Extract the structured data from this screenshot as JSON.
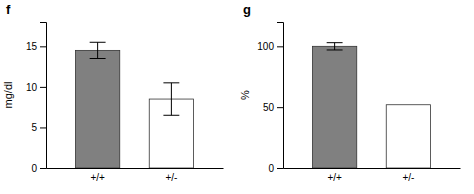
{
  "chart_data": [
    {
      "type": "bar",
      "title": "f",
      "categories": [
        "+/+",
        "+/-"
      ],
      "values": [
        14.5,
        8.5
      ],
      "errors": [
        1.0,
        2.0
      ],
      "colors": [
        "#808080",
        "#ffffff"
      ],
      "ylabel": "mg/dl",
      "ylim": [
        0,
        18
      ],
      "yticks": [
        0,
        5,
        10,
        15
      ]
    },
    {
      "type": "bar",
      "title": "g",
      "categories": [
        "+/+",
        "+/-"
      ],
      "values": [
        100,
        52
      ],
      "errors": [
        3.0,
        null
      ],
      "colors": [
        "#808080",
        "#ffffff"
      ],
      "ylabel": "%",
      "ylim": [
        0,
        120
      ],
      "yticks": [
        0,
        50,
        100
      ]
    }
  ]
}
